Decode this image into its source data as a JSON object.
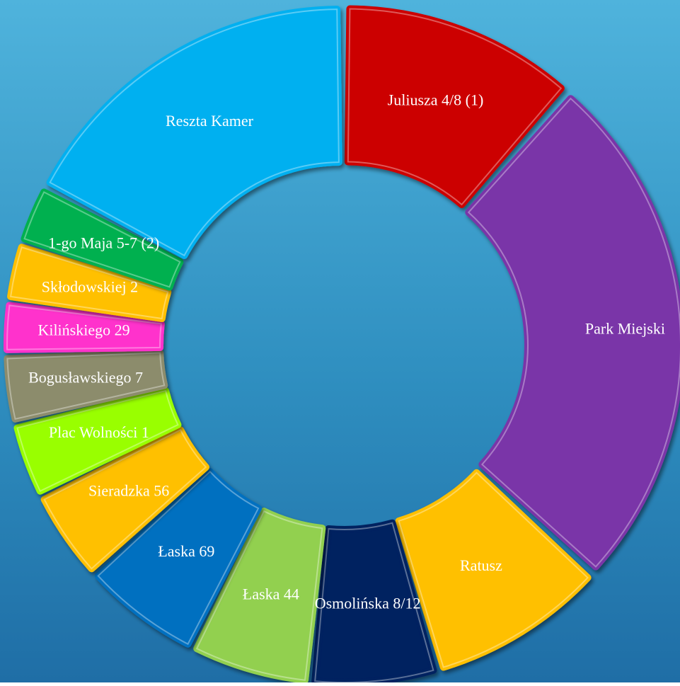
{
  "chart_data": {
    "type": "donut",
    "categories": [
      "Juliusza 4/8 (1)",
      "Park Miejski",
      "Ratusz",
      "Osmolińska 8/12",
      "Łaska 44",
      "Łaska 69",
      "Sieradzka 56",
      "Plac Wolności 1",
      "Bogusławskiego 7",
      "Kilińskiego 29",
      "Skłodowskiej 2",
      "1-go Maja 5-7 (2)",
      "Reszta Kamer"
    ],
    "values": [
      11.4,
      25.3,
      8.6,
      6.1,
      5.8,
      5.8,
      4.4,
      3.6,
      3.3,
      2.5,
      2.8,
      2.8,
      17.2
    ],
    "colors": [
      "#cc0000",
      "#7a35a8",
      "#ffc000",
      "#002060",
      "#92d050",
      "#0070c0",
      "#ffc000",
      "#99ff00",
      "#8c8c6c",
      "#ff33cc",
      "#ffc000",
      "#00b050",
      "#00b0f0"
    ]
  }
}
